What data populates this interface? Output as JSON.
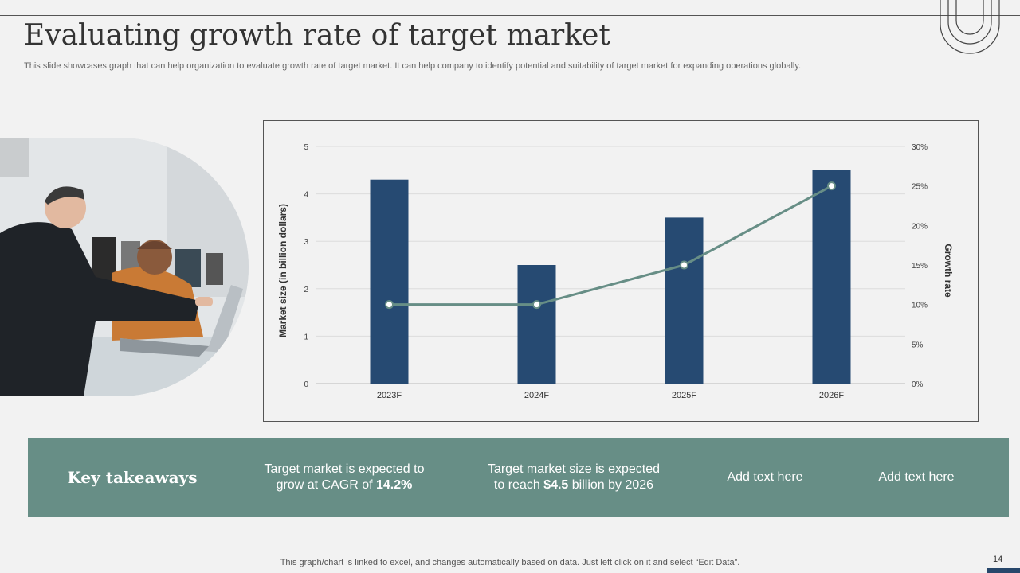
{
  "title": "Evaluating growth rate of target market",
  "subtitle": "This slide showcases graph that can help organization to evaluate growth rate of target market. It can help company to identify potential and suitability of target market for expanding operations globally.",
  "chart_data": {
    "type": "bar",
    "categories": [
      "2023F",
      "2024F",
      "2025F",
      "2026F"
    ],
    "series": [
      {
        "name": "Market size (in billion dollars)",
        "type": "bar",
        "axis": "left",
        "values": [
          4.3,
          2.5,
          3.5,
          4.5
        ],
        "color": "#264a72"
      },
      {
        "name": "Growth rate",
        "type": "line",
        "axis": "right",
        "values": [
          10,
          10,
          15,
          25
        ],
        "color": "#678e86"
      }
    ],
    "ylabel": "Market size (in billion dollars)",
    "y2label": "Growth rate",
    "ylim": [
      0,
      5
    ],
    "y2lim": [
      0,
      30
    ],
    "yticks": [
      "0",
      "1",
      "2",
      "3",
      "4",
      "5"
    ],
    "y2ticks": [
      "0%",
      "5%",
      "10%",
      "15%",
      "20%",
      "25%",
      "30%"
    ],
    "grid": true
  },
  "takeaways": {
    "heading": "Key takeaways",
    "item1": {
      "line1": "Target market is expected to",
      "pre": "grow at CAGR of ",
      "bold": "14.2%",
      "post": ""
    },
    "item2": {
      "line1": "Target market size is expected",
      "pre": "to reach ",
      "bold": "$4.5",
      "post": " billion by 2026"
    },
    "item3": "Add text here",
    "item4": "Add text here"
  },
  "footer_note": "This graph/chart is linked to excel,  and changes automatically based on data. Just left click on it and select “Edit Data”.",
  "page_number": "14",
  "colors": {
    "bar": "#264a72",
    "line": "#678e86",
    "panel": "#678e86"
  }
}
